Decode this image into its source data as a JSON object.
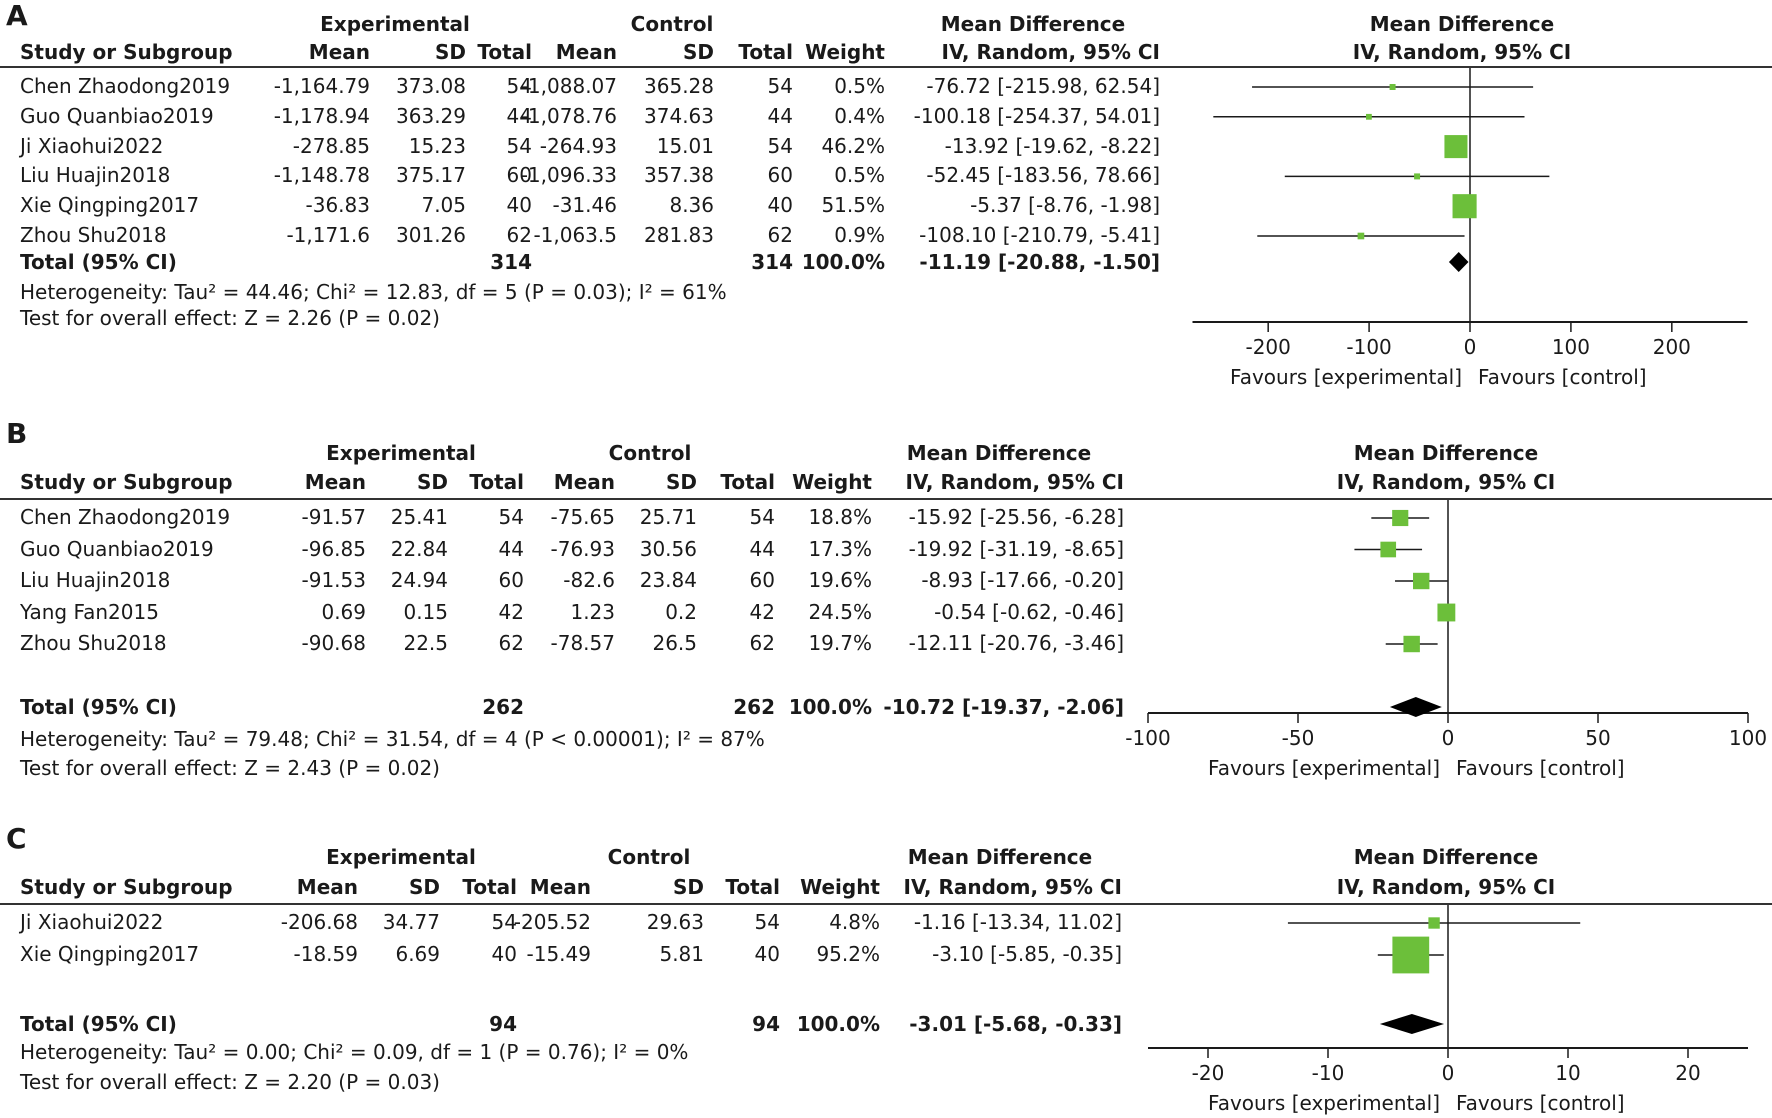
{
  "colors": {
    "square": "#6cbf3a",
    "diamond": "#000000",
    "line": "#1a1a1a",
    "text": "#1a1a1a"
  },
  "headers": {
    "experimental": "Experimental",
    "control": "Control",
    "study": "Study or Subgroup",
    "mean": "Mean",
    "sd": "SD",
    "total": "Total",
    "weight": "Weight",
    "md": "Mean Difference",
    "method": "IV, Random, 95% CI",
    "total_row": "Total (95% CI)",
    "favours_left": "Favours [experimental]",
    "favours_right": "Favours [control]"
  },
  "chart_data": [
    {
      "type": "forest",
      "panel": "A",
      "title": "Mean Difference",
      "subtitle": "IV, Random, 95% CI",
      "studies": [
        {
          "name": "Chen Zhaodong2019",
          "exp_mean": "-1,164.79",
          "exp_sd": "373.08",
          "exp_total": "54",
          "ctl_mean": "-1,088.07",
          "ctl_sd": "365.28",
          "ctl_total": "54",
          "weight": "0.5%",
          "ci_text": "-76.72 [-215.98, 62.54]",
          "md": -76.72,
          "lo": -215.98,
          "hi": 62.54,
          "w": 0.5
        },
        {
          "name": "Guo Quanbiao2019",
          "exp_mean": "-1,178.94",
          "exp_sd": "363.29",
          "exp_total": "44",
          "ctl_mean": "-1,078.76",
          "ctl_sd": "374.63",
          "ctl_total": "44",
          "weight": "0.4%",
          "ci_text": "-100.18 [-254.37, 54.01]",
          "md": -100.18,
          "lo": -254.37,
          "hi": 54.01,
          "w": 0.4
        },
        {
          "name": "Ji Xiaohui2022",
          "exp_mean": "-278.85",
          "exp_sd": "15.23",
          "exp_total": "54",
          "ctl_mean": "-264.93",
          "ctl_sd": "15.01",
          "ctl_total": "54",
          "weight": "46.2%",
          "ci_text": "-13.92 [-19.62, -8.22]",
          "md": -13.92,
          "lo": -19.62,
          "hi": -8.22,
          "w": 46.2
        },
        {
          "name": "Liu Huajin2018",
          "exp_mean": "-1,148.78",
          "exp_sd": "375.17",
          "exp_total": "60",
          "ctl_mean": "-1,096.33",
          "ctl_sd": "357.38",
          "ctl_total": "60",
          "weight": "0.5%",
          "ci_text": "-52.45 [-183.56, 78.66]",
          "md": -52.45,
          "lo": -183.56,
          "hi": 78.66,
          "w": 0.5
        },
        {
          "name": "Xie Qingping2017",
          "exp_mean": "-36.83",
          "exp_sd": "7.05",
          "exp_total": "40",
          "ctl_mean": "-31.46",
          "ctl_sd": "8.36",
          "ctl_total": "40",
          "weight": "51.5%",
          "ci_text": "-5.37 [-8.76, -1.98]",
          "md": -5.37,
          "lo": -8.76,
          "hi": -1.98,
          "w": 51.5
        },
        {
          "name": "Zhou Shu2018",
          "exp_mean": "-1,171.6",
          "exp_sd": "301.26",
          "exp_total": "62",
          "ctl_mean": "-1,063.5",
          "ctl_sd": "281.83",
          "ctl_total": "62",
          "weight": "0.9%",
          "ci_text": "-108.10 [-210.79, -5.41]",
          "md": -108.1,
          "lo": -210.79,
          "hi": -5.41,
          "w": 0.9
        }
      ],
      "total": {
        "exp_total": "314",
        "ctl_total": "314",
        "weight": "100.0%",
        "ci_text": "-11.19 [-20.88, -1.50]",
        "md": -11.19,
        "lo": -20.88,
        "hi": -1.5
      },
      "heterogeneity": "Heterogeneity: Tau² = 44.46; Chi² = 12.83, df = 5 (P = 0.03); I² = 61%",
      "overall": "Test for overall effect: Z = 2.26 (P = 0.02)",
      "xlim": [
        -275,
        275
      ],
      "ticks": [
        -200,
        -100,
        0,
        100,
        200
      ],
      "tick_labels": [
        "-200",
        "-100",
        "0",
        "100",
        "200"
      ]
    },
    {
      "type": "forest",
      "panel": "B",
      "title": "Mean Difference",
      "subtitle": "IV, Random, 95% CI",
      "studies": [
        {
          "name": "Chen Zhaodong2019",
          "exp_mean": "-91.57",
          "exp_sd": "25.41",
          "exp_total": "54",
          "ctl_mean": "-75.65",
          "ctl_sd": "25.71",
          "ctl_total": "54",
          "weight": "18.8%",
          "ci_text": "-15.92 [-25.56, -6.28]",
          "md": -15.92,
          "lo": -25.56,
          "hi": -6.28,
          "w": 18.8
        },
        {
          "name": "Guo Quanbiao2019",
          "exp_mean": "-96.85",
          "exp_sd": "22.84",
          "exp_total": "44",
          "ctl_mean": "-76.93",
          "ctl_sd": "30.56",
          "ctl_total": "44",
          "weight": "17.3%",
          "ci_text": "-19.92 [-31.19, -8.65]",
          "md": -19.92,
          "lo": -31.19,
          "hi": -8.65,
          "w": 17.3
        },
        {
          "name": "Liu Huajin2018",
          "exp_mean": "-91.53",
          "exp_sd": "24.94",
          "exp_total": "60",
          "ctl_mean": "-82.6",
          "ctl_sd": "23.84",
          "ctl_total": "60",
          "weight": "19.6%",
          "ci_text": "-8.93 [-17.66, -0.20]",
          "md": -8.93,
          "lo": -17.66,
          "hi": -0.2,
          "w": 19.6
        },
        {
          "name": "Yang Fan2015",
          "exp_mean": "0.69",
          "exp_sd": "0.15",
          "exp_total": "42",
          "ctl_mean": "1.23",
          "ctl_sd": "0.2",
          "ctl_total": "42",
          "weight": "24.5%",
          "ci_text": "-0.54 [-0.62, -0.46]",
          "md": -0.54,
          "lo": -0.62,
          "hi": -0.46,
          "w": 24.5
        },
        {
          "name": "Zhou Shu2018",
          "exp_mean": "-90.68",
          "exp_sd": "22.5",
          "exp_total": "62",
          "ctl_mean": "-78.57",
          "ctl_sd": "26.5",
          "ctl_total": "62",
          "weight": "19.7%",
          "ci_text": "-12.11 [-20.76, -3.46]",
          "md": -12.11,
          "lo": -20.76,
          "hi": -3.46,
          "w": 19.7
        }
      ],
      "total": {
        "exp_total": "262",
        "ctl_total": "262",
        "weight": "100.0%",
        "ci_text": "-10.72 [-19.37, -2.06]",
        "md": -10.72,
        "lo": -19.37,
        "hi": -2.06
      },
      "heterogeneity": "Heterogeneity: Tau² = 79.48; Chi² = 31.54, df = 4 (P < 0.00001); I² = 87%",
      "overall": "Test for overall effect: Z = 2.43 (P = 0.02)",
      "xlim": [
        -100,
        100
      ],
      "ticks": [
        -100,
        -50,
        0,
        50,
        100
      ],
      "tick_labels": [
        "-100",
        "-50",
        "0",
        "50",
        "100"
      ]
    },
    {
      "type": "forest",
      "panel": "C",
      "title": "Mean Difference",
      "subtitle": "IV, Random, 95% CI",
      "studies": [
        {
          "name": "Ji Xiaohui2022",
          "exp_mean": "-206.68",
          "exp_sd": "34.77",
          "exp_total": "54",
          "ctl_mean": "-205.52",
          "ctl_sd": "29.63",
          "ctl_total": "54",
          "weight": "4.8%",
          "ci_text": "-1.16 [-13.34, 11.02]",
          "md": -1.16,
          "lo": -13.34,
          "hi": 11.02,
          "w": 4.8
        },
        {
          "name": "Xie Qingping2017",
          "exp_mean": "-18.59",
          "exp_sd": "6.69",
          "exp_total": "40",
          "ctl_mean": "-15.49",
          "ctl_sd": "5.81",
          "ctl_total": "40",
          "weight": "95.2%",
          "ci_text": "-3.10 [-5.85, -0.35]",
          "md": -3.1,
          "lo": -5.85,
          "hi": -0.35,
          "w": 95.2
        }
      ],
      "total": {
        "exp_total": "94",
        "ctl_total": "94",
        "weight": "100.0%",
        "ci_text": "-3.01 [-5.68, -0.33]",
        "md": -3.01,
        "lo": -5.68,
        "hi": -0.33
      },
      "heterogeneity": "Heterogeneity: Tau² = 0.00; Chi² = 0.09, df = 1 (P = 0.76); I² = 0%",
      "overall": "Test for overall effect: Z = 2.20 (P = 0.03)",
      "xlim": [
        -25,
        25
      ],
      "ticks": [
        -20,
        -10,
        0,
        10,
        20
      ],
      "tick_labels": [
        "-20",
        "-10",
        "0",
        "10",
        "20"
      ]
    }
  ]
}
